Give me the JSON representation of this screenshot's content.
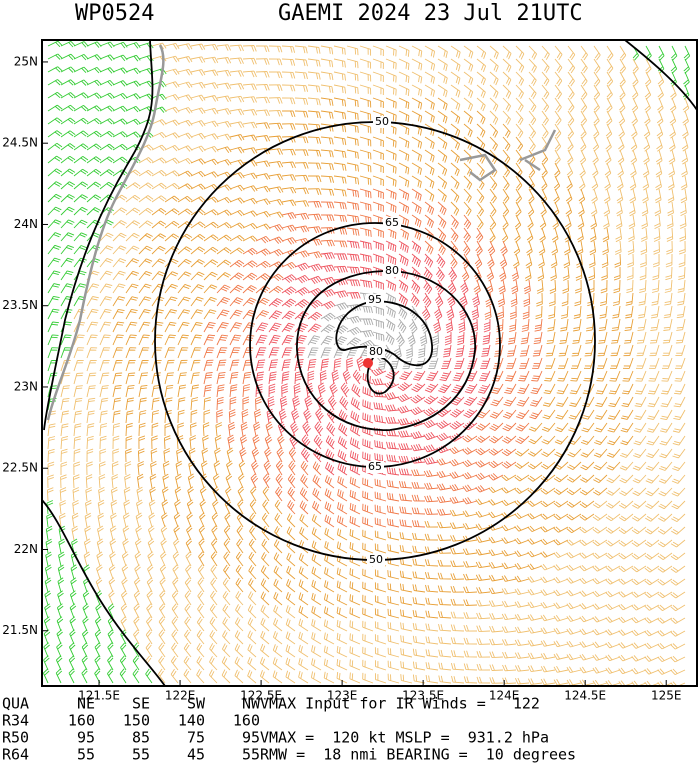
{
  "header": {
    "id": "WP0524",
    "title": "GAEMI 2024 23 Jul 21UTC"
  },
  "map": {
    "xlim": [
      121.148,
      125.19
    ],
    "ylim": [
      21.16,
      25.135
    ],
    "xticks": [
      {
        "value": 121.5,
        "label": "121.5E"
      },
      {
        "value": 122,
        "label": "122E"
      },
      {
        "value": 122.5,
        "label": "122.5E"
      },
      {
        "value": 123,
        "label": "123E"
      },
      {
        "value": 123.5,
        "label": "123.5E"
      },
      {
        "value": 124,
        "label": "124E"
      },
      {
        "value": 124.5,
        "label": "124.5E"
      },
      {
        "value": 125,
        "label": "125E"
      }
    ],
    "yticks": [
      {
        "value": 21.5,
        "label": "21.5N"
      },
      {
        "value": 22,
        "label": "22N"
      },
      {
        "value": 22.5,
        "label": "22.5N"
      },
      {
        "value": 23,
        "label": "23N"
      },
      {
        "value": 23.5,
        "label": "23.5N"
      },
      {
        "value": 24,
        "label": "24N"
      },
      {
        "value": 24.5,
        "label": "24.5N"
      },
      {
        "value": 25,
        "label": "25N"
      }
    ],
    "contour_labels": [
      50,
      65,
      80,
      95,
      80,
      65,
      50
    ]
  },
  "table": {
    "rows": [
      [
        "QUA",
        "NE",
        "SE",
        "SW",
        "NW",
        "VMAX Input for IR Winds =   122"
      ],
      [
        "R34",
        "160",
        "150",
        "140",
        "160",
        ""
      ],
      [
        "R50",
        "95",
        "85",
        "75",
        "95",
        "VMAX =  120 kt MSLP =  931.2 hPa"
      ],
      [
        "R64",
        "55",
        "55",
        "45",
        "55",
        "RMW =  18 nmi BEARING =  10 degrees"
      ]
    ]
  }
}
